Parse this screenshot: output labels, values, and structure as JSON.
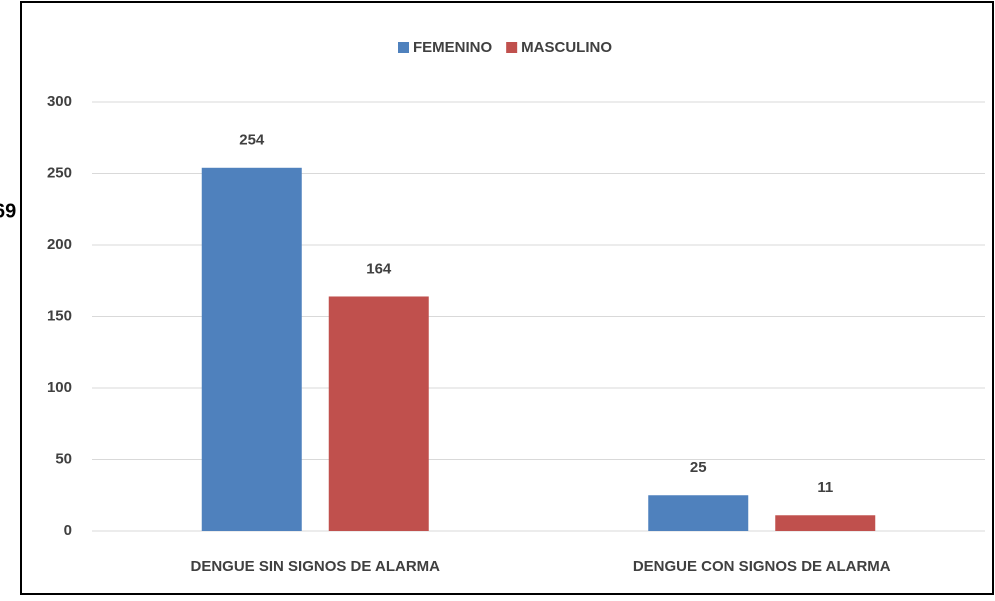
{
  "annotation": "69",
  "chart_data": {
    "type": "bar",
    "categories": [
      "DENGUE SIN SIGNOS DE ALARMA",
      "DENGUE CON SIGNOS DE ALARMA"
    ],
    "series": [
      {
        "name": "FEMENINO",
        "color": "#4f81bd",
        "values": [
          254,
          25
        ]
      },
      {
        "name": "MASCULINO",
        "color": "#c0504d",
        "values": [
          164,
          11
        ]
      }
    ],
    "ylim": [
      0,
      300
    ],
    "yticks": [
      0,
      50,
      100,
      150,
      200,
      250,
      300
    ],
    "grid": true,
    "legend": "top"
  }
}
